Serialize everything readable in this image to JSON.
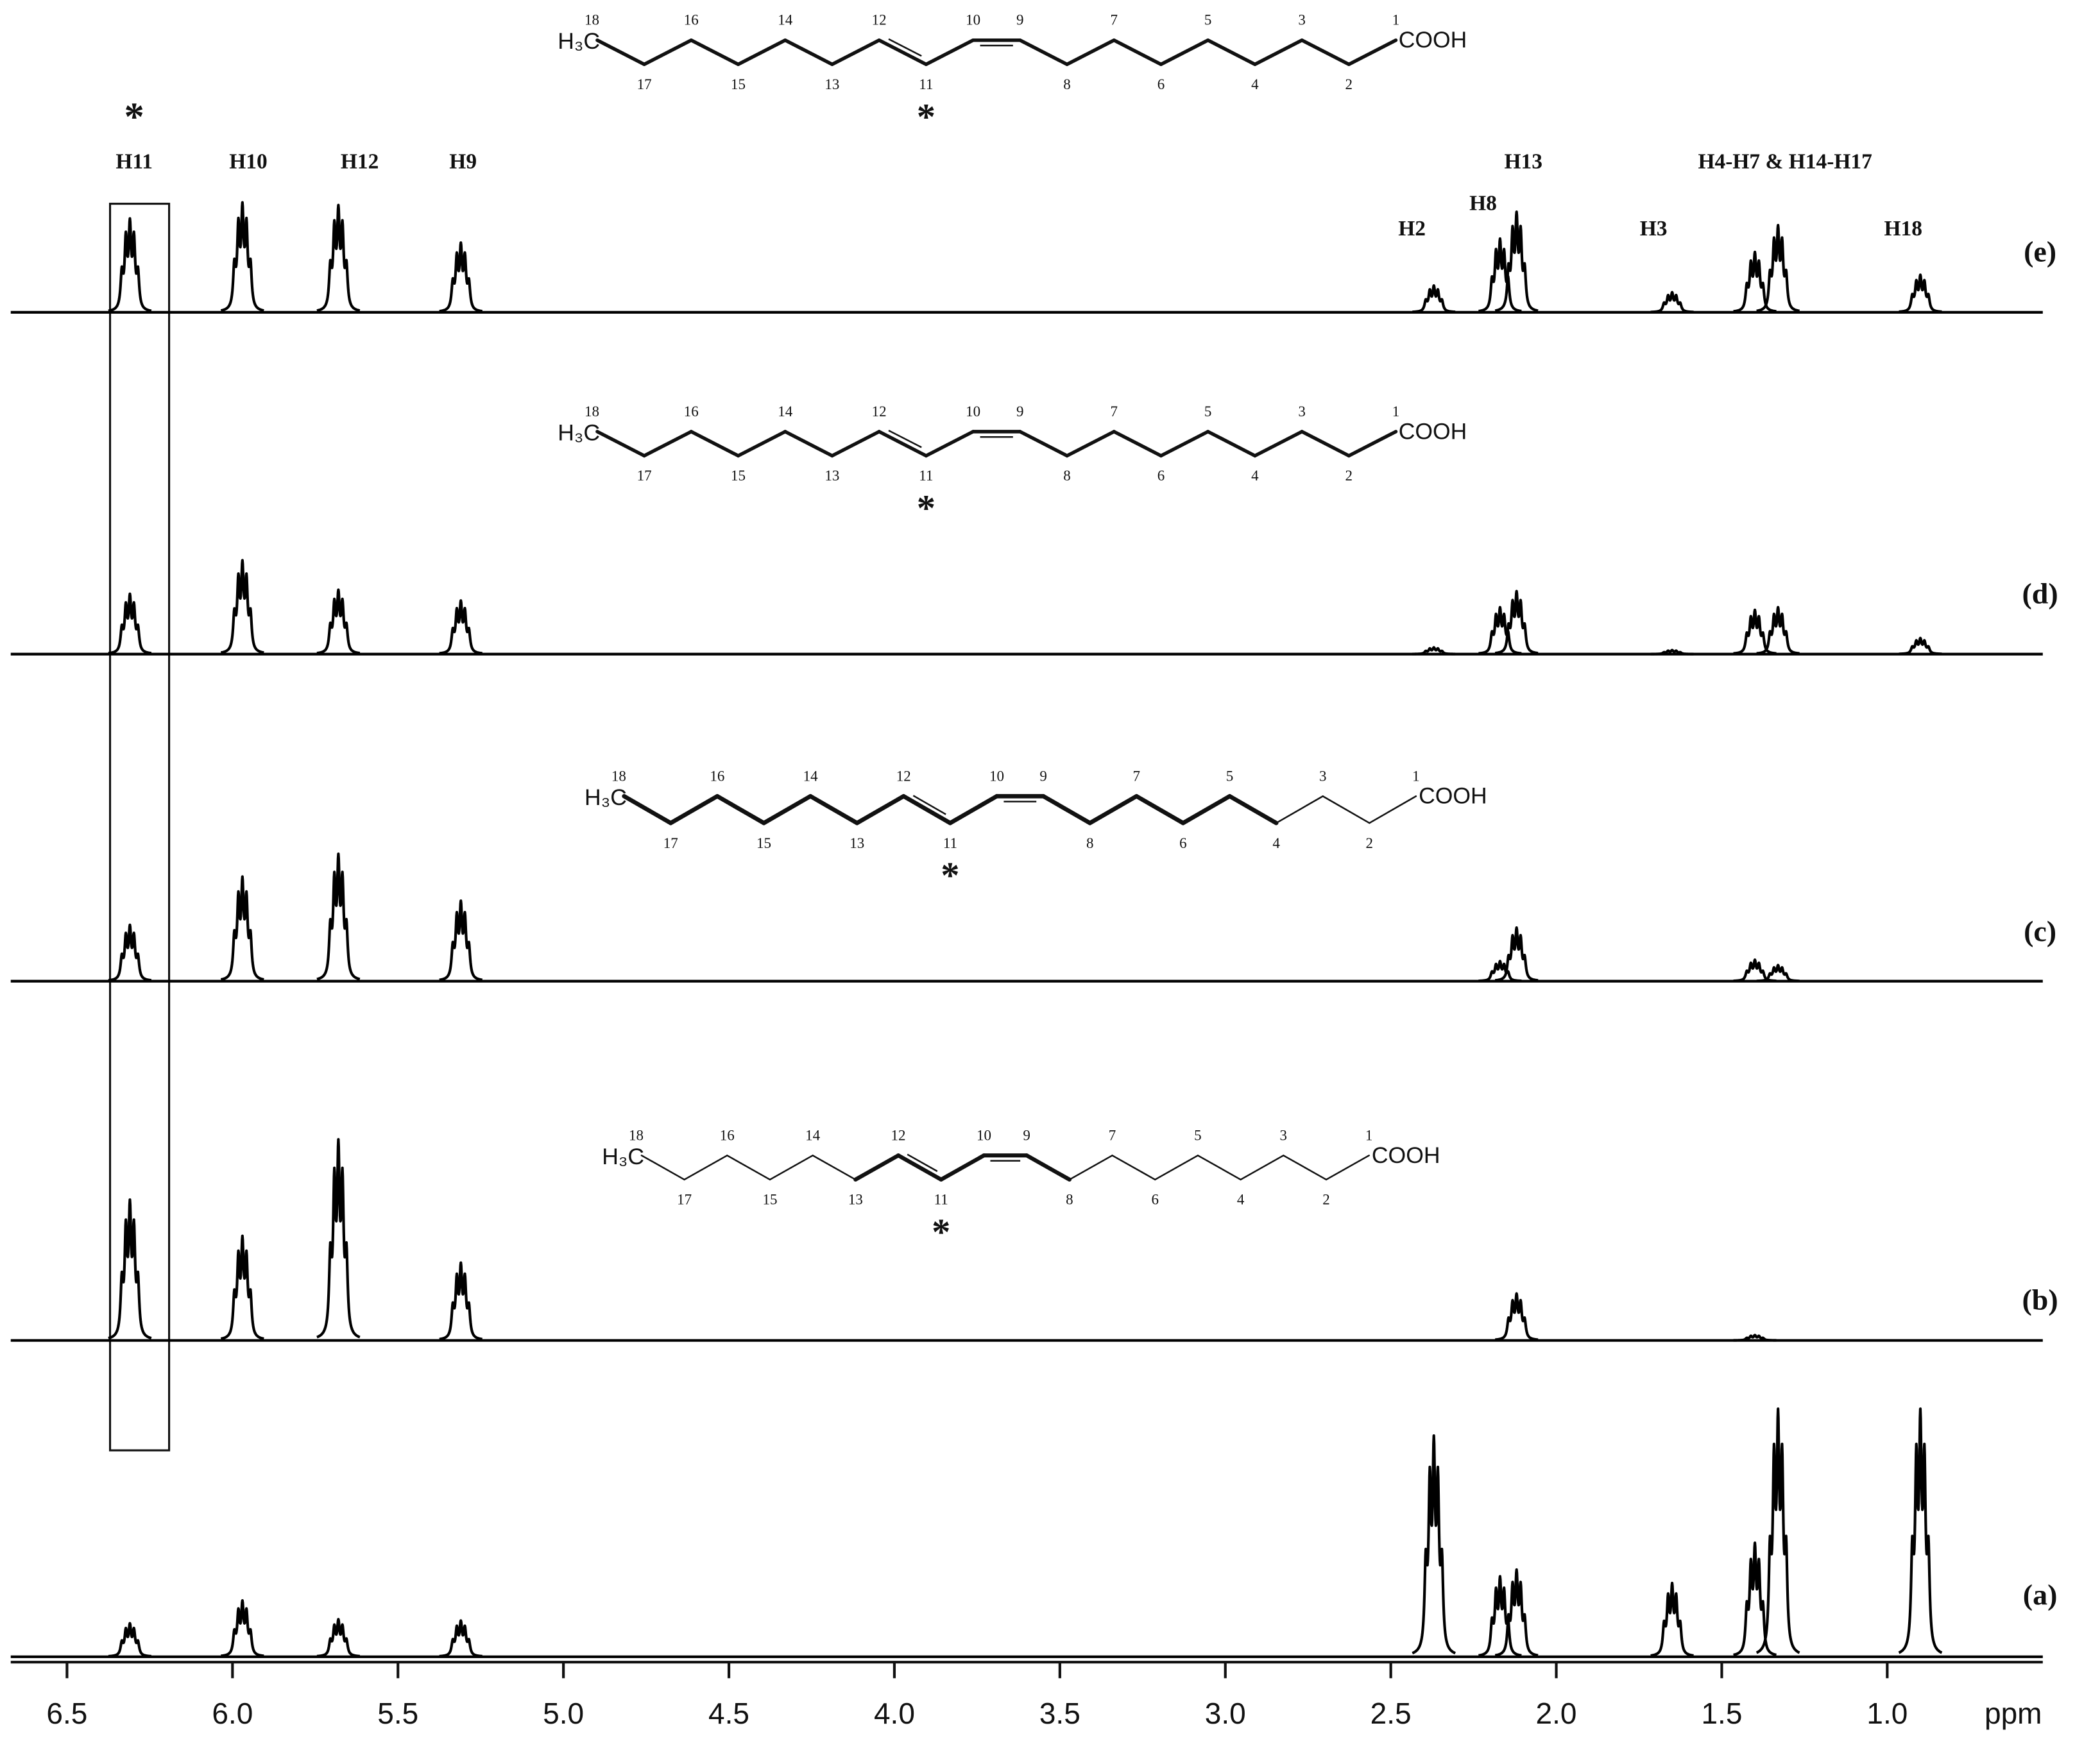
{
  "chart_data": {
    "type": "nmr",
    "xlabel": "ppm",
    "xlim": [
      6.67,
      0.53
    ],
    "xticks": [
      6.5,
      {
        "value": 6,
        "label": "6.0"
      },
      5.5,
      {
        "value": 5,
        "label": "5.0"
      },
      4.5,
      {
        "value": 4,
        "label": "4.0"
      },
      3.5,
      {
        "value": 3,
        "label": "3.0"
      },
      2.5,
      {
        "value": 2,
        "label": "2.0"
      },
      1.5,
      {
        "value": 1,
        "label": "1.0"
      }
    ],
    "annotations": [
      "*",
      "H11",
      "H10",
      "H12",
      "H9",
      "H13",
      "H4-H7 & H14-H17",
      "H2",
      "H8",
      "H3",
      "H18"
    ],
    "series": [
      {
        "name": "(e)",
        "color": "#000000",
        "peaks": [
          {
            "ppm": 6.31,
            "height": 70
          },
          {
            "ppm": 5.97,
            "height": 82
          },
          {
            "ppm": 5.68,
            "height": 80
          },
          {
            "ppm": 5.31,
            "height": 52
          },
          {
            "ppm": 2.37,
            "height": 20
          },
          {
            "ppm": 2.17,
            "height": 55
          },
          {
            "ppm": 2.12,
            "height": 75
          },
          {
            "ppm": 1.65,
            "height": 15
          },
          {
            "ppm": 1.4,
            "height": 45
          },
          {
            "ppm": 1.33,
            "height": 65
          },
          {
            "ppm": 0.9,
            "height": 28
          }
        ]
      },
      {
        "name": "(d)",
        "color": "#000000",
        "peaks": [
          {
            "ppm": 6.31,
            "height": 45
          },
          {
            "ppm": 5.97,
            "height": 70
          },
          {
            "ppm": 5.68,
            "height": 48
          },
          {
            "ppm": 5.31,
            "height": 40
          },
          {
            "ppm": 2.37,
            "height": 5
          },
          {
            "ppm": 2.17,
            "height": 35
          },
          {
            "ppm": 2.12,
            "height": 47
          },
          {
            "ppm": 1.65,
            "height": 3
          },
          {
            "ppm": 1.4,
            "height": 33
          },
          {
            "ppm": 1.33,
            "height": 35
          },
          {
            "ppm": 0.9,
            "height": 12
          }
        ]
      },
      {
        "name": "(c)",
        "color": "#000000",
        "peaks": [
          {
            "ppm": 6.31,
            "height": 42
          },
          {
            "ppm": 5.97,
            "height": 78
          },
          {
            "ppm": 5.68,
            "height": 95
          },
          {
            "ppm": 5.31,
            "height": 60
          },
          {
            "ppm": 2.17,
            "height": 15
          },
          {
            "ppm": 2.12,
            "height": 40
          },
          {
            "ppm": 1.4,
            "height": 16
          },
          {
            "ppm": 1.33,
            "height": 12
          }
        ]
      },
      {
        "name": "(b)",
        "color": "#000000",
        "peaks": [
          {
            "ppm": 6.31,
            "height": 105
          },
          {
            "ppm": 5.97,
            "height": 78
          },
          {
            "ppm": 5.68,
            "height": 150
          },
          {
            "ppm": 5.31,
            "height": 58
          },
          {
            "ppm": 2.12,
            "height": 35
          },
          {
            "ppm": 1.4,
            "height": 4
          }
        ]
      },
      {
        "name": "(a)",
        "color": "#000000",
        "peaks": [
          {
            "ppm": 6.31,
            "height": 25
          },
          {
            "ppm": 5.97,
            "height": 42
          },
          {
            "ppm": 5.68,
            "height": 28
          },
          {
            "ppm": 5.31,
            "height": 27
          },
          {
            "ppm": 2.37,
            "height": 165
          },
          {
            "ppm": 2.17,
            "height": 60
          },
          {
            "ppm": 2.12,
            "height": 65
          },
          {
            "ppm": 1.65,
            "height": 55
          },
          {
            "ppm": 1.4,
            "height": 85
          },
          {
            "ppm": 1.33,
            "height": 185
          },
          {
            "ppm": 0.9,
            "height": 185
          }
        ]
      }
    ],
    "structures": [
      {
        "methyl": "H₃C",
        "acid": "COOH",
        "mark": "*",
        "atoms": [
          18,
          17,
          16,
          15,
          14,
          13,
          12,
          11,
          10,
          9,
          8,
          7,
          6,
          5,
          4,
          3,
          2,
          1
        ]
      },
      {
        "methyl": "H₃C",
        "acid": "COOH",
        "mark": "*",
        "atoms": [
          18,
          17,
          16,
          15,
          14,
          13,
          12,
          11,
          10,
          9,
          8,
          7,
          6,
          5,
          4,
          3,
          2,
          1
        ]
      },
      {
        "methyl": "H₃C",
        "acid": "COOH",
        "mark": "*",
        "atoms": [
          18,
          17,
          16,
          15,
          14,
          13,
          12,
          11,
          10,
          9,
          8,
          7,
          6,
          5,
          4,
          3,
          2,
          1
        ]
      },
      {
        "methyl": "H₃C",
        "acid": "COOH",
        "mark": "*",
        "atoms": [
          18,
          17,
          16,
          15,
          14,
          13,
          12,
          11,
          10,
          9,
          8,
          7,
          6,
          5,
          4,
          3,
          2,
          1
        ]
      }
    ]
  }
}
